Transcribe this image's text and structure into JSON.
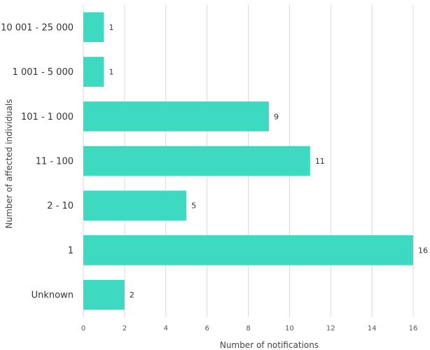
{
  "chart_data": {
    "type": "bar",
    "orientation": "horizontal",
    "categories": [
      "10 001 - 25 000",
      "1 001 - 5 000",
      "101 - 1 000",
      "11 - 100",
      "2 - 10",
      "1",
      "Unknown"
    ],
    "values": [
      1,
      1,
      9,
      11,
      5,
      16,
      2
    ],
    "xlabel": "Number of notifications",
    "ylabel": "Number of affected individuals",
    "xlim": [
      0,
      16
    ],
    "xticks": [
      0,
      2,
      4,
      6,
      8,
      10,
      12,
      14,
      16
    ],
    "grid": "vertical",
    "bar_color": "#3dd9c1"
  }
}
